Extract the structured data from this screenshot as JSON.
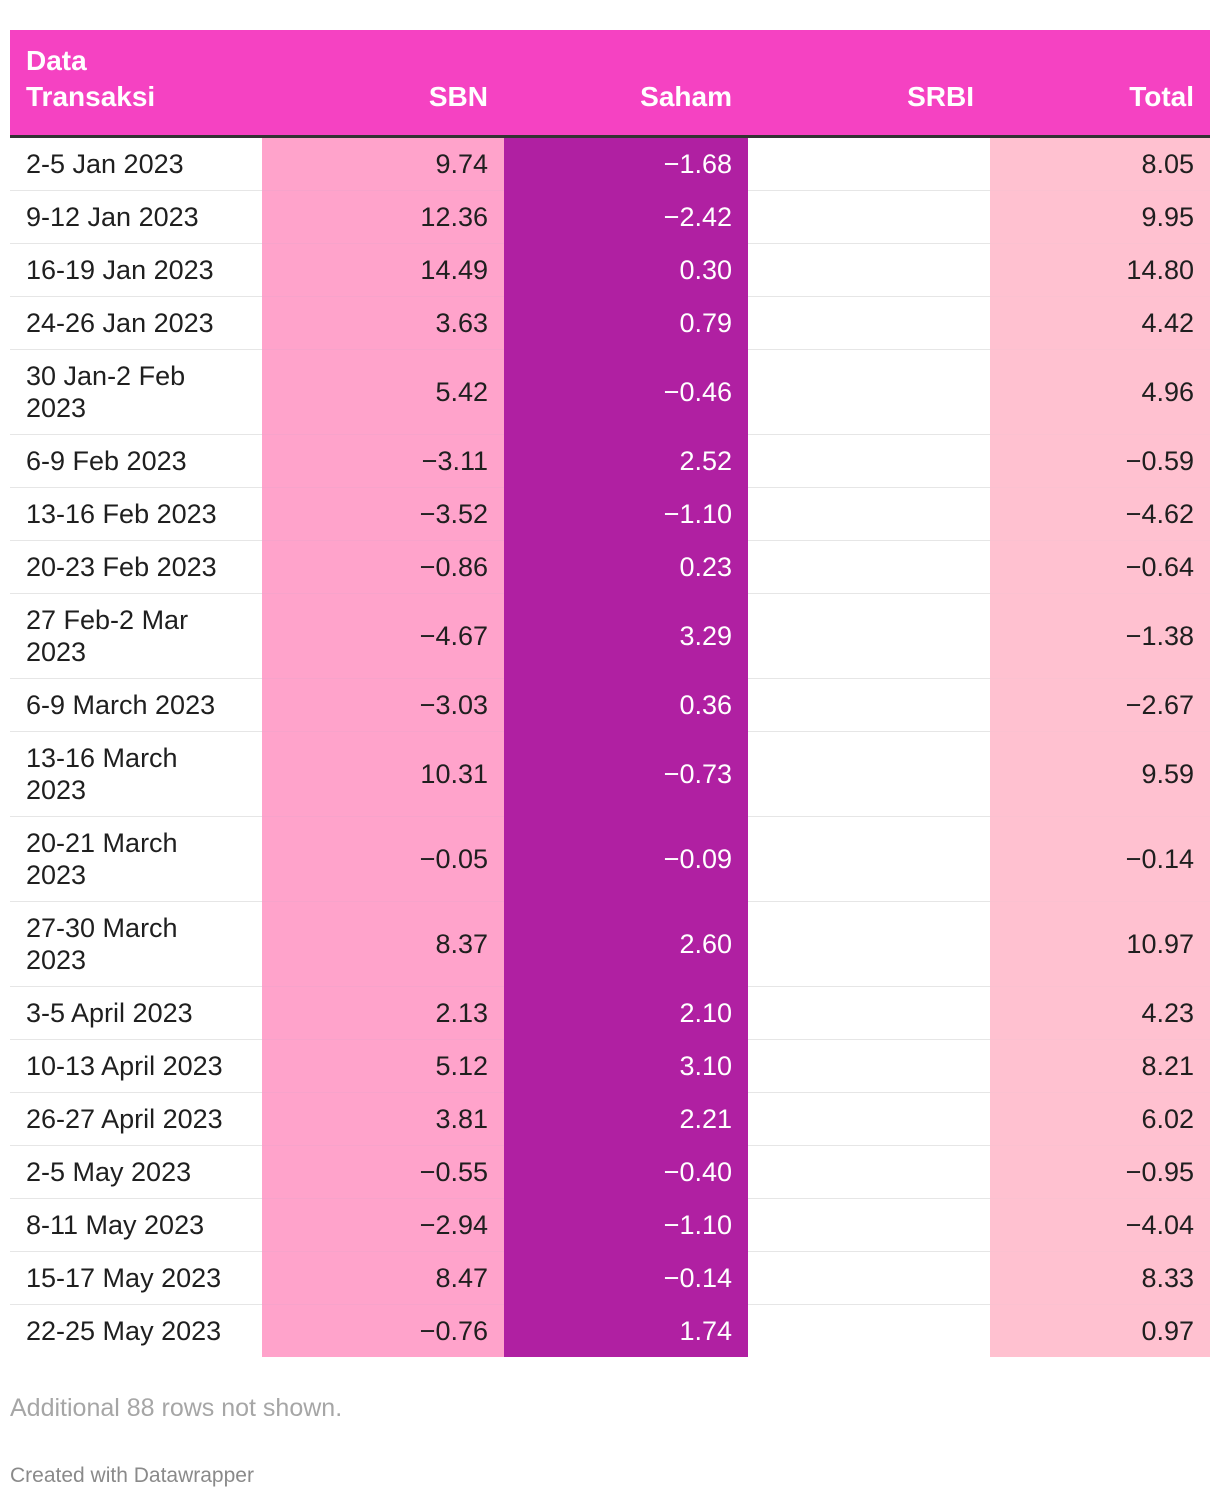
{
  "chart_data": {
    "type": "table",
    "columns": [
      "Data\nTransaksi",
      "SBN",
      "Saham",
      "SRBI",
      "Total"
    ],
    "rows": [
      {
        "period": "2-5 Jan 2023",
        "sbn": "9.74",
        "saham": "−1.68",
        "srbi": "",
        "total": "8.05"
      },
      {
        "period": "9-12 Jan 2023",
        "sbn": "12.36",
        "saham": "−2.42",
        "srbi": "",
        "total": "9.95"
      },
      {
        "period": "16-19 Jan 2023",
        "sbn": "14.49",
        "saham": "0.30",
        "srbi": "",
        "total": "14.80"
      },
      {
        "period": "24-26 Jan 2023",
        "sbn": "3.63",
        "saham": "0.79",
        "srbi": "",
        "total": "4.42"
      },
      {
        "period": "30 Jan-2 Feb\n2023",
        "sbn": "5.42",
        "saham": "−0.46",
        "srbi": "",
        "total": "4.96"
      },
      {
        "period": "6-9 Feb 2023",
        "sbn": "−3.11",
        "saham": "2.52",
        "srbi": "",
        "total": "−0.59"
      },
      {
        "period": "13-16 Feb 2023",
        "sbn": "−3.52",
        "saham": "−1.10",
        "srbi": "",
        "total": "−4.62"
      },
      {
        "period": "20-23 Feb 2023",
        "sbn": "−0.86",
        "saham": "0.23",
        "srbi": "",
        "total": "−0.64"
      },
      {
        "period": "27 Feb-2 Mar\n2023",
        "sbn": "−4.67",
        "saham": "3.29",
        "srbi": "",
        "total": "−1.38"
      },
      {
        "period": "6-9 March 2023",
        "sbn": "−3.03",
        "saham": "0.36",
        "srbi": "",
        "total": "−2.67"
      },
      {
        "period": "13-16 March\n2023",
        "sbn": "10.31",
        "saham": "−0.73",
        "srbi": "",
        "total": "9.59"
      },
      {
        "period": "20-21 March\n2023",
        "sbn": "−0.05",
        "saham": "−0.09",
        "srbi": "",
        "total": "−0.14"
      },
      {
        "period": "27-30 March\n2023",
        "sbn": "8.37",
        "saham": "2.60",
        "srbi": "",
        "total": "10.97"
      },
      {
        "period": "3-5 April 2023",
        "sbn": "2.13",
        "saham": "2.10",
        "srbi": "",
        "total": "4.23"
      },
      {
        "period": "10-13 April 2023",
        "sbn": "5.12",
        "saham": "3.10",
        "srbi": "",
        "total": "8.21"
      },
      {
        "period": "26-27 April 2023",
        "sbn": "3.81",
        "saham": "2.21",
        "srbi": "",
        "total": "6.02"
      },
      {
        "period": "2-5 May 2023",
        "sbn": "−0.55",
        "saham": "−0.40",
        "srbi": "",
        "total": "−0.95"
      },
      {
        "period": "8-11 May 2023",
        "sbn": "−2.94",
        "saham": "−1.10",
        "srbi": "",
        "total": "−4.04"
      },
      {
        "period": "15-17 May 2023",
        "sbn": "8.47",
        "saham": "−0.14",
        "srbi": "",
        "total": "8.33"
      },
      {
        "period": "22-25 May 2023",
        "sbn": "−0.76",
        "saham": "1.74",
        "srbi": "",
        "total": "0.97"
      }
    ],
    "note": "Additional 88 rows not shown."
  },
  "footer": {
    "credit": "Created with Datawrapper"
  },
  "colors": {
    "header_bg": "#f542c2",
    "sbn_bg": "#ffa3cb",
    "saham_bg": "#b020a2",
    "srbi_bg": "#ffffff",
    "total_bg": "#ffc1d0",
    "header_rule": "#333333"
  }
}
